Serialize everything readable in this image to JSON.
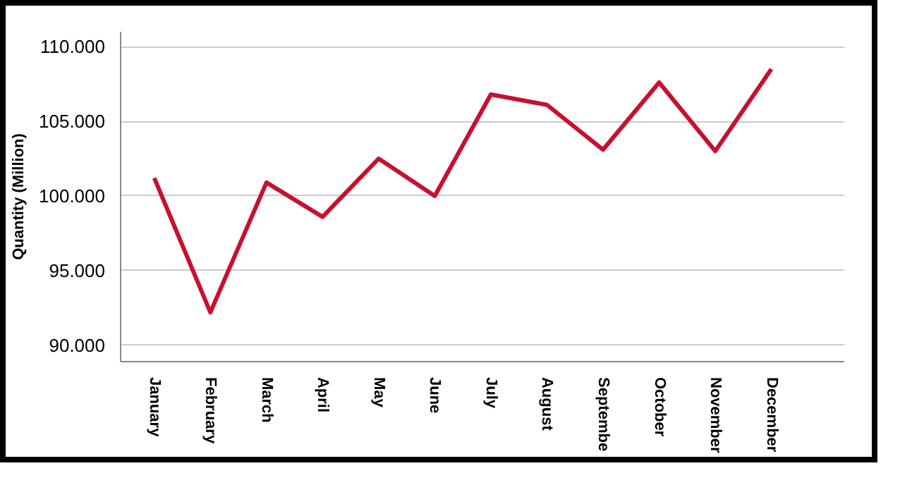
{
  "chart_data": {
    "type": "line",
    "ylabel": "Quantity (Million)",
    "categories": [
      "January",
      "February",
      "March",
      "April",
      "May",
      "June",
      "July",
      "August",
      "Septembe",
      "October",
      "November",
      "December"
    ],
    "series": [
      {
        "color": "#c8102e",
        "values": [
          101.2,
          92.2,
          100.9,
          98.6,
          102.5,
          100.0,
          106.8,
          106.1,
          103.1,
          107.6,
          103.0,
          108.5
        ]
      }
    ],
    "ylim": [
      88.9,
      111
    ],
    "yticks": [
      {
        "value": 90,
        "label": "90.000"
      },
      {
        "value": 95,
        "label": "95.000"
      },
      {
        "value": 100,
        "label": "100.000"
      },
      {
        "value": 105,
        "label": "105.000"
      },
      {
        "value": 110,
        "label": "110.000"
      }
    ],
    "grid": "y",
    "marker": "none",
    "line_style": "solid"
  }
}
